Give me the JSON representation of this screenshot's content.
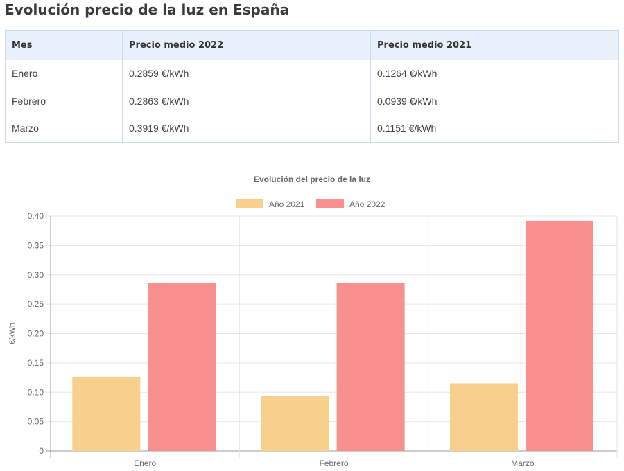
{
  "page_title": "Evolución precio de la luz en España",
  "table": {
    "headers": [
      "Mes",
      "Precio medio 2022",
      "Precio medio 2021"
    ],
    "rows": [
      [
        "Enero",
        "0.2859 €/kWh",
        "0.1264 €/kWh"
      ],
      [
        "Febrero",
        "0.2863 €/kWh",
        "0.0939 €/kWh"
      ],
      [
        "Marzo",
        "0.3919 €/kWh",
        "0.1151 €/kWh"
      ]
    ]
  },
  "chart_data": {
    "type": "bar",
    "title": "Evolución del precio de la luz",
    "xlabel": "",
    "ylabel": "€/kWh",
    "categories": [
      "Enero",
      "Febrero",
      "Marzo"
    ],
    "series": [
      {
        "name": "Año 2021",
        "values": [
          0.1264,
          0.0939,
          0.1151
        ],
        "color": "#f8d08e"
      },
      {
        "name": "Año 2022",
        "values": [
          0.2859,
          0.2863,
          0.3919
        ],
        "color": "#f99090"
      }
    ],
    "ylim": [
      0,
      0.4
    ],
    "yticks": [
      "0",
      "0.05",
      "0.10",
      "0.15",
      "0.20",
      "0.25",
      "0.30",
      "0.35",
      "0.40"
    ],
    "grid": true,
    "legend": "top-center"
  }
}
